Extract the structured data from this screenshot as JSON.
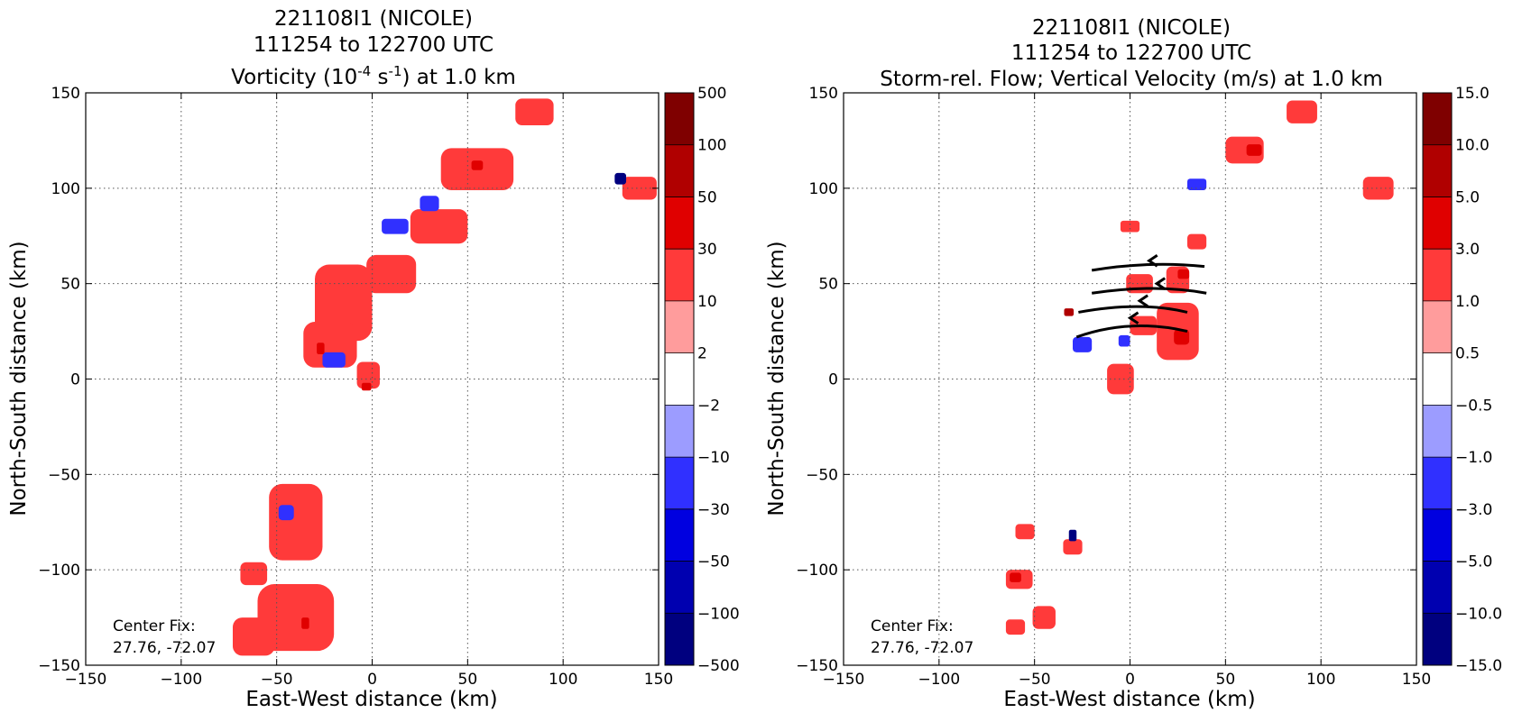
{
  "chart_data": [
    {
      "type": "heatmap",
      "title_lines": [
        "221108I1 (NICOLE)",
        "111254 to 122700 UTC"
      ],
      "title_field": "Vorticity (10",
      "title_exp1": "-4",
      "title_mid": " s",
      "title_exp2": "-1",
      "title_end": ") at 1.0 km",
      "xlabel": "East-West distance (km)",
      "ylabel": "North-South distance (km)",
      "xlim": [
        -150,
        150
      ],
      "ylim": [
        -150,
        150
      ],
      "x_ticks": [
        -150,
        -100,
        -50,
        0,
        50,
        100,
        150
      ],
      "y_ticks": [
        -150,
        -100,
        -50,
        0,
        50,
        100,
        150
      ],
      "x_tick_labels": [
        "−150",
        "−100",
        "−50",
        "0",
        "50",
        "100",
        "150"
      ],
      "y_tick_labels": [
        "−150",
        "−100",
        "−50",
        "0",
        "50",
        "100",
        "150"
      ],
      "grid": true,
      "colorbar": {
        "levels": [
          "−500",
          "−100",
          "−50",
          "−30",
          "−10",
          "−2",
          "2",
          "10",
          "30",
          "50",
          "100",
          "500"
        ],
        "colors": [
          "#00007f",
          "#0000b0",
          "#0000e0",
          "#3030ff",
          "#9c9cff",
          "#ffffff",
          "#ff9c9c",
          "#ff3a3a",
          "#e00000",
          "#b00000",
          "#7f0000"
        ]
      },
      "annotation_label": "Center Fix:",
      "annotation_value": "27.76, -72.07",
      "patches": [
        {
          "x": -15,
          "y": 40,
          "w": 30,
          "h": 40,
          "level": 2
        },
        {
          "x": -22,
          "y": 18,
          "w": 28,
          "h": 24,
          "level": 2
        },
        {
          "x": 10,
          "y": 55,
          "w": 26,
          "h": 20,
          "level": 2
        },
        {
          "x": 35,
          "y": 80,
          "w": 30,
          "h": 18,
          "level": 2
        },
        {
          "x": 55,
          "y": 110,
          "w": 38,
          "h": 22,
          "level": 2
        },
        {
          "x": 85,
          "y": 140,
          "w": 20,
          "h": 14,
          "level": 2
        },
        {
          "x": -2,
          "y": 2,
          "w": 12,
          "h": 14,
          "level": 2
        },
        {
          "x": 140,
          "y": 100,
          "w": 18,
          "h": 12,
          "level": 2
        },
        {
          "x": -40,
          "y": -75,
          "w": 28,
          "h": 40,
          "level": 2
        },
        {
          "x": -40,
          "y": -125,
          "w": 40,
          "h": 35,
          "level": 2
        },
        {
          "x": -62,
          "y": -135,
          "w": 22,
          "h": 20,
          "level": 2
        },
        {
          "x": -62,
          "y": -102,
          "w": 14,
          "h": 12,
          "level": 2
        },
        {
          "x": 30,
          "y": 92,
          "w": 10,
          "h": 8,
          "level": -2
        },
        {
          "x": 12,
          "y": 80,
          "w": 14,
          "h": 8,
          "level": -2
        },
        {
          "x": -20,
          "y": 10,
          "w": 12,
          "h": 8,
          "level": -2
        },
        {
          "x": -45,
          "y": -70,
          "w": 8,
          "h": 8,
          "level": -2
        },
        {
          "x": 55,
          "y": 112,
          "w": 6,
          "h": 5,
          "level": 3
        },
        {
          "x": -3,
          "y": -4,
          "w": 5,
          "h": 4,
          "level": 3
        },
        {
          "x": -27,
          "y": 16,
          "w": 4,
          "h": 6,
          "level": 3
        },
        {
          "x": -35,
          "y": -128,
          "w": 4,
          "h": 6,
          "level": 3
        },
        {
          "x": 130,
          "y": 105,
          "w": 6,
          "h": 6,
          "level": -5
        }
      ]
    },
    {
      "type": "heatmap",
      "title_lines": [
        "221108I1 (NICOLE)",
        "111254 to 122700 UTC"
      ],
      "title_field": "Storm-rel. Flow; Vertical Velocity (m/s) at 1.0 km",
      "xlabel": "East-West distance (km)",
      "ylabel": "North-South distance (km)",
      "xlim": [
        -150,
        150
      ],
      "ylim": [
        -150,
        150
      ],
      "x_ticks": [
        -150,
        -100,
        -50,
        0,
        50,
        100,
        150
      ],
      "y_ticks": [
        -150,
        -100,
        -50,
        0,
        50,
        100,
        150
      ],
      "x_tick_labels": [
        "−150",
        "−100",
        "−50",
        "0",
        "50",
        "100",
        "150"
      ],
      "y_tick_labels": [
        "−150",
        "−100",
        "−50",
        "0",
        "50",
        "100",
        "150"
      ],
      "grid": true,
      "colorbar": {
        "levels": [
          "−15.0",
          "−10.0",
          "−5.0",
          "−3.0",
          "−1.0",
          "−0.5",
          "0.5",
          "1.0",
          "3.0",
          "5.0",
          "10.0",
          "15.0"
        ],
        "colors": [
          "#00007f",
          "#0000b0",
          "#0000e0",
          "#3030ff",
          "#9c9cff",
          "#ffffff",
          "#ff9c9c",
          "#ff3a3a",
          "#e00000",
          "#b00000",
          "#7f0000"
        ]
      },
      "annotation_label": "Center Fix:",
      "annotation_value": "27.76, -72.07",
      "streamlines": [
        [
          [
            39,
            59
          ],
          [
            10,
            62
          ],
          [
            -20,
            57
          ]
        ],
        [
          [
            40,
            45
          ],
          [
            14,
            50
          ],
          [
            -20,
            45
          ]
        ],
        [
          [
            30,
            35
          ],
          [
            5,
            41
          ],
          [
            -27,
            35
          ]
        ],
        [
          [
            30,
            25
          ],
          [
            0,
            32
          ],
          [
            -28,
            22
          ]
        ]
      ],
      "patches": [
        {
          "x": 25,
          "y": 52,
          "w": 12,
          "h": 14,
          "level": 2
        },
        {
          "x": 25,
          "y": 25,
          "w": 22,
          "h": 30,
          "level": 2
        },
        {
          "x": 7,
          "y": 28,
          "w": 14,
          "h": 10,
          "level": 2
        },
        {
          "x": 5,
          "y": 50,
          "w": 14,
          "h": 10,
          "level": 2
        },
        {
          "x": 35,
          "y": 72,
          "w": 10,
          "h": 8,
          "level": 2
        },
        {
          "x": 60,
          "y": 120,
          "w": 20,
          "h": 14,
          "level": 2
        },
        {
          "x": 90,
          "y": 140,
          "w": 16,
          "h": 12,
          "level": 2
        },
        {
          "x": -5,
          "y": 0,
          "w": 14,
          "h": 16,
          "level": 2
        },
        {
          "x": 130,
          "y": 100,
          "w": 16,
          "h": 12,
          "level": 2
        },
        {
          "x": 0,
          "y": 80,
          "w": 10,
          "h": 6,
          "level": 2
        },
        {
          "x": -55,
          "y": -80,
          "w": 10,
          "h": 8,
          "level": 2
        },
        {
          "x": -58,
          "y": -105,
          "w": 14,
          "h": 10,
          "level": 2
        },
        {
          "x": -45,
          "y": -125,
          "w": 12,
          "h": 12,
          "level": 2
        },
        {
          "x": -30,
          "y": -88,
          "w": 10,
          "h": 8,
          "level": 2
        },
        {
          "x": -60,
          "y": -130,
          "w": 10,
          "h": 8,
          "level": 2
        },
        {
          "x": 65,
          "y": 120,
          "w": 8,
          "h": 6,
          "level": 3
        },
        {
          "x": 28,
          "y": 55,
          "w": 6,
          "h": 5,
          "level": 3
        },
        {
          "x": 27,
          "y": 22,
          "w": 8,
          "h": 8,
          "level": 3
        },
        {
          "x": -60,
          "y": -104,
          "w": 6,
          "h": 5,
          "level": 3
        },
        {
          "x": -32,
          "y": 35,
          "w": 5,
          "h": 4,
          "level": 4
        },
        {
          "x": -25,
          "y": 18,
          "w": 10,
          "h": 8,
          "level": -2
        },
        {
          "x": -3,
          "y": 20,
          "w": 6,
          "h": 6,
          "level": -2
        },
        {
          "x": 35,
          "y": 102,
          "w": 10,
          "h": 6,
          "level": -2
        },
        {
          "x": -30,
          "y": -82,
          "w": 4,
          "h": 6,
          "level": -5
        }
      ]
    }
  ]
}
